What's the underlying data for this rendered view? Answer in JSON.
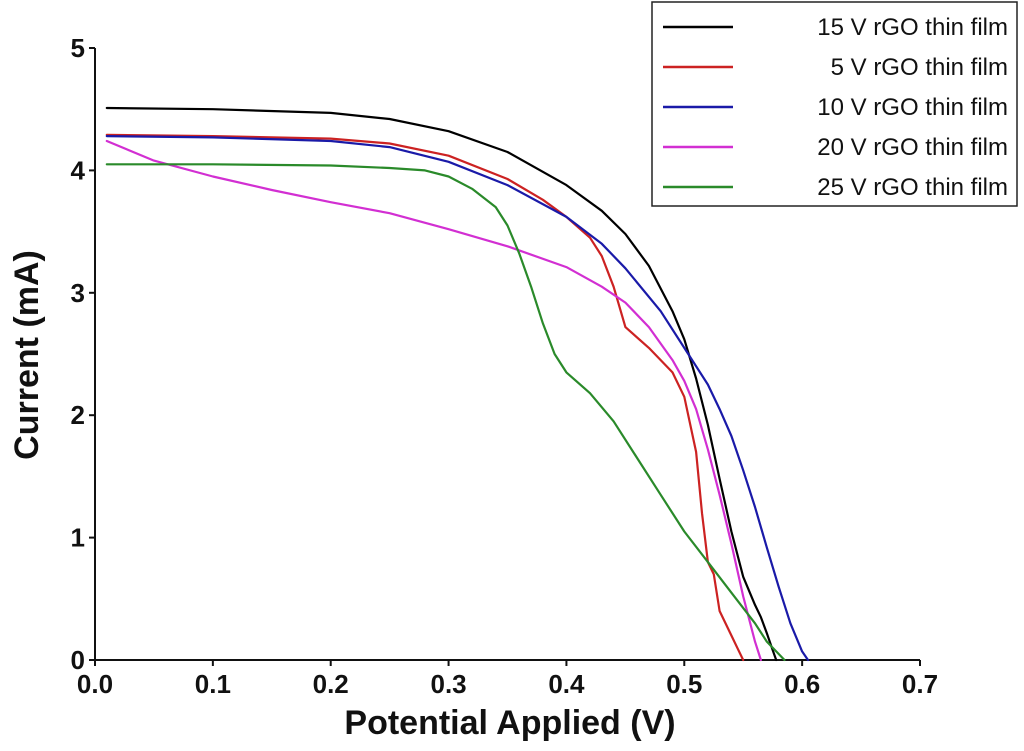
{
  "chart_data": {
    "type": "line",
    "title": "",
    "xlabel": "Potential Applied (V)",
    "ylabel": "Current (mA)",
    "xlim": [
      0.0,
      0.7
    ],
    "ylim": [
      0,
      5
    ],
    "xticks": [
      "0.0",
      "0.1",
      "0.2",
      "0.3",
      "0.4",
      "0.5",
      "0.6",
      "0.7"
    ],
    "yticks": [
      "0",
      "1",
      "2",
      "3",
      "4",
      "5"
    ],
    "grid": false,
    "legend_position": "top-right",
    "series": [
      {
        "name": "15 V rGO thin film",
        "color": "#000000",
        "points": [
          [
            0.01,
            4.51
          ],
          [
            0.1,
            4.5
          ],
          [
            0.2,
            4.47
          ],
          [
            0.25,
            4.42
          ],
          [
            0.3,
            4.32
          ],
          [
            0.35,
            4.15
          ],
          [
            0.4,
            3.88
          ],
          [
            0.43,
            3.67
          ],
          [
            0.45,
            3.48
          ],
          [
            0.47,
            3.22
          ],
          [
            0.49,
            2.85
          ],
          [
            0.5,
            2.62
          ],
          [
            0.51,
            2.3
          ],
          [
            0.52,
            1.92
          ],
          [
            0.53,
            1.48
          ],
          [
            0.54,
            1.05
          ],
          [
            0.55,
            0.68
          ],
          [
            0.56,
            0.45
          ],
          [
            0.565,
            0.35
          ],
          [
            0.57,
            0.22
          ],
          [
            0.575,
            0.08
          ],
          [
            0.578,
            0.0
          ]
        ]
      },
      {
        "name": "5 V rGO thin film",
        "color": "#cc2222",
        "points": [
          [
            0.01,
            4.29
          ],
          [
            0.1,
            4.28
          ],
          [
            0.2,
            4.26
          ],
          [
            0.25,
            4.22
          ],
          [
            0.3,
            4.12
          ],
          [
            0.35,
            3.93
          ],
          [
            0.38,
            3.76
          ],
          [
            0.4,
            3.62
          ],
          [
            0.42,
            3.45
          ],
          [
            0.43,
            3.3
          ],
          [
            0.44,
            3.05
          ],
          [
            0.45,
            2.72
          ],
          [
            0.47,
            2.55
          ],
          [
            0.49,
            2.35
          ],
          [
            0.5,
            2.15
          ],
          [
            0.51,
            1.7
          ],
          [
            0.515,
            1.2
          ],
          [
            0.52,
            0.8
          ],
          [
            0.525,
            0.7
          ],
          [
            0.53,
            0.4
          ],
          [
            0.54,
            0.2
          ],
          [
            0.545,
            0.1
          ],
          [
            0.55,
            0.0
          ]
        ]
      },
      {
        "name": "10 V rGO thin film",
        "color": "#1a1aa8",
        "points": [
          [
            0.01,
            4.28
          ],
          [
            0.1,
            4.27
          ],
          [
            0.2,
            4.24
          ],
          [
            0.25,
            4.19
          ],
          [
            0.3,
            4.07
          ],
          [
            0.35,
            3.88
          ],
          [
            0.4,
            3.62
          ],
          [
            0.43,
            3.4
          ],
          [
            0.45,
            3.2
          ],
          [
            0.48,
            2.85
          ],
          [
            0.5,
            2.55
          ],
          [
            0.52,
            2.25
          ],
          [
            0.53,
            2.05
          ],
          [
            0.54,
            1.83
          ],
          [
            0.55,
            1.55
          ],
          [
            0.56,
            1.25
          ],
          [
            0.57,
            0.92
          ],
          [
            0.58,
            0.6
          ],
          [
            0.59,
            0.3
          ],
          [
            0.6,
            0.07
          ],
          [
            0.605,
            0.0
          ]
        ]
      },
      {
        "name": "20 V rGO thin film",
        "color": "#d22fd2",
        "points": [
          [
            0.01,
            4.24
          ],
          [
            0.05,
            4.08
          ],
          [
            0.1,
            3.95
          ],
          [
            0.15,
            3.84
          ],
          [
            0.2,
            3.74
          ],
          [
            0.25,
            3.65
          ],
          [
            0.3,
            3.52
          ],
          [
            0.35,
            3.38
          ],
          [
            0.4,
            3.21
          ],
          [
            0.43,
            3.05
          ],
          [
            0.45,
            2.92
          ],
          [
            0.47,
            2.72
          ],
          [
            0.49,
            2.45
          ],
          [
            0.5,
            2.28
          ],
          [
            0.51,
            2.05
          ],
          [
            0.52,
            1.72
          ],
          [
            0.53,
            1.35
          ],
          [
            0.54,
            0.95
          ],
          [
            0.55,
            0.52
          ],
          [
            0.56,
            0.15
          ],
          [
            0.565,
            0.0
          ]
        ]
      },
      {
        "name": "25 V rGO thin film",
        "color": "#2a8a2a",
        "points": [
          [
            0.01,
            4.05
          ],
          [
            0.1,
            4.05
          ],
          [
            0.2,
            4.04
          ],
          [
            0.25,
            4.02
          ],
          [
            0.28,
            4.0
          ],
          [
            0.3,
            3.95
          ],
          [
            0.32,
            3.85
          ],
          [
            0.34,
            3.7
          ],
          [
            0.35,
            3.55
          ],
          [
            0.36,
            3.32
          ],
          [
            0.37,
            3.05
          ],
          [
            0.38,
            2.75
          ],
          [
            0.39,
            2.5
          ],
          [
            0.4,
            2.35
          ],
          [
            0.42,
            2.18
          ],
          [
            0.44,
            1.95
          ],
          [
            0.46,
            1.65
          ],
          [
            0.48,
            1.35
          ],
          [
            0.5,
            1.05
          ],
          [
            0.52,
            0.8
          ],
          [
            0.54,
            0.55
          ],
          [
            0.56,
            0.3
          ],
          [
            0.57,
            0.15
          ],
          [
            0.58,
            0.05
          ],
          [
            0.585,
            0.0
          ]
        ]
      }
    ]
  }
}
